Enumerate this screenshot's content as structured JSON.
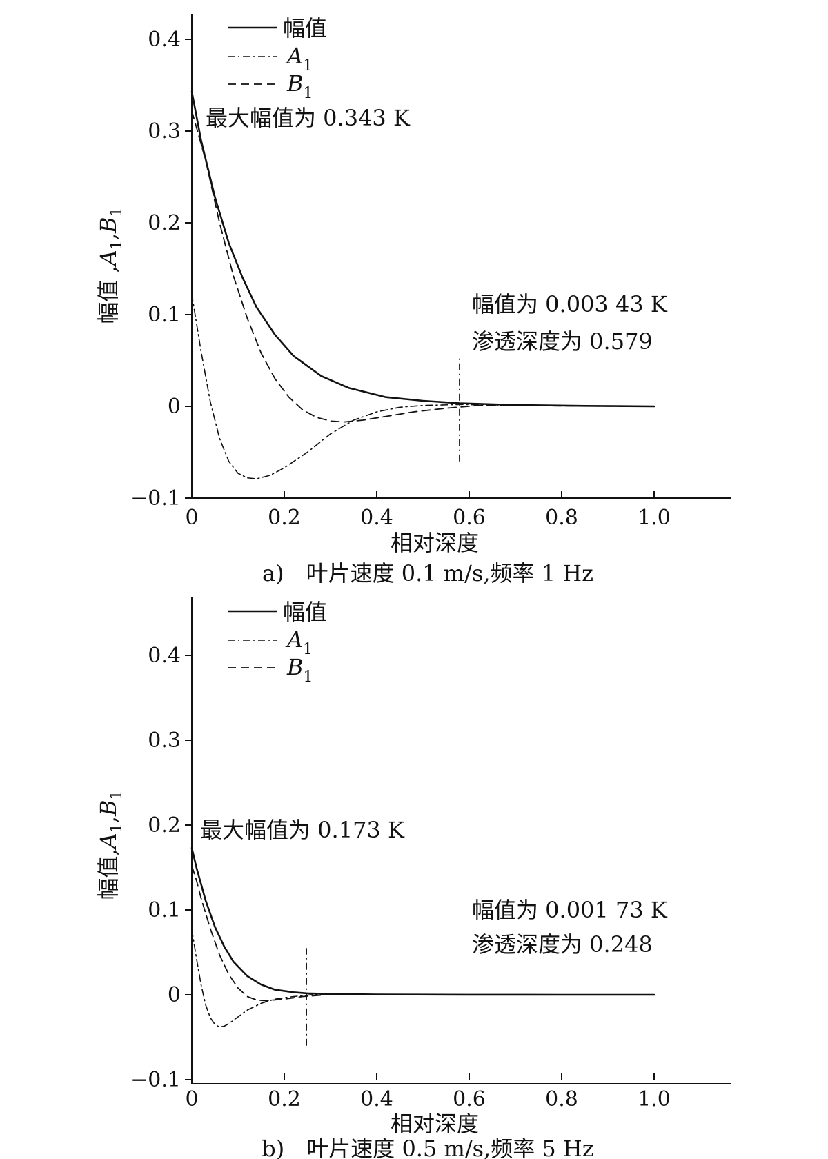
{
  "chart_data": [
    {
      "type": "line",
      "caption": "a)　叶片速度 0.1 m/s,频率 1 Hz",
      "xlabel": "相对深度",
      "ylabel": "幅值 ,A1,B1",
      "xlim": [
        0,
        1.05
      ],
      "ylim": [
        -0.1,
        0.43
      ],
      "xticks": [
        0,
        0.2,
        0.4,
        0.6,
        0.8,
        1.0
      ],
      "xtick_labels": [
        "0",
        "0.2",
        "0.4",
        "0.6",
        "0.8",
        "1.0"
      ],
      "yticks": [
        -0.1,
        0,
        0.1,
        0.2,
        0.3,
        0.4
      ],
      "ytick_labels": [
        "−0.1",
        "0",
        "0.1",
        "0.2",
        "0.3",
        "0.4"
      ],
      "legend_position": "top-left",
      "series": [
        {
          "name": "幅值",
          "style": "solid",
          "x": [
            0,
            0.02,
            0.05,
            0.08,
            0.11,
            0.14,
            0.18,
            0.22,
            0.28,
            0.34,
            0.42,
            0.5,
            0.58,
            0.7,
            0.85,
            1.0
          ],
          "y": [
            0.343,
            0.29,
            0.228,
            0.178,
            0.14,
            0.108,
            0.078,
            0.055,
            0.033,
            0.02,
            0.01,
            0.006,
            0.0034,
            0.0015,
            0.0005,
            0.0
          ]
        },
        {
          "name": "A1",
          "style": "dashdot",
          "x": [
            0,
            0.02,
            0.04,
            0.06,
            0.08,
            0.1,
            0.12,
            0.14,
            0.17,
            0.2,
            0.25,
            0.3,
            0.35,
            0.4,
            0.45,
            0.5,
            0.58,
            0.65,
            0.75,
            0.9,
            1.0
          ],
          "y": [
            0.122,
            0.06,
            0.005,
            -0.035,
            -0.06,
            -0.073,
            -0.078,
            -0.079,
            -0.075,
            -0.067,
            -0.05,
            -0.03,
            -0.015,
            -0.006,
            -0.001,
            0.001,
            0.002,
            0.0015,
            0.0008,
            0.0002,
            0.0
          ]
        },
        {
          "name": "B1",
          "style": "dashed",
          "x": [
            0,
            0.03,
            0.06,
            0.09,
            0.12,
            0.15,
            0.18,
            0.21,
            0.24,
            0.27,
            0.3,
            0.33,
            0.37,
            0.42,
            0.48,
            0.55,
            0.62,
            0.7,
            0.85,
            1.0
          ],
          "y": [
            0.322,
            0.268,
            0.2,
            0.142,
            0.096,
            0.058,
            0.03,
            0.01,
            -0.004,
            -0.012,
            -0.016,
            -0.017,
            -0.015,
            -0.011,
            -0.006,
            -0.002,
            0.001,
            0.001,
            0.0003,
            0.0
          ]
        }
      ],
      "marker_line": {
        "x": 0.579,
        "style": "dashdot",
        "y_range": [
          -0.06,
          0.053
        ]
      },
      "annotations": [
        {
          "text": "最大幅值为 0.343 K"
        },
        {
          "text": "幅值为 0.003 43 K"
        },
        {
          "text": "渗透深度为 0.579"
        }
      ]
    },
    {
      "type": "line",
      "caption": "b)　叶片速度 0.5 m/s,频率 5 Hz",
      "xlabel": "相对深度",
      "ylabel": "幅值,A1,B1",
      "xlim": [
        0,
        1.05
      ],
      "ylim": [
        -0.1,
        0.43
      ],
      "xticks": [
        0,
        0.2,
        0.4,
        0.6,
        0.8,
        1.0
      ],
      "xtick_labels": [
        "0",
        "0.2",
        "0.4",
        "0.6",
        "0.8",
        "1.0"
      ],
      "yticks": [
        -0.1,
        0,
        0.1,
        0.2,
        0.3,
        0.4
      ],
      "ytick_labels": [
        "−0.1",
        "0",
        "0.1",
        "0.2",
        "0.3",
        "0.4"
      ],
      "legend_position": "top-left",
      "series": [
        {
          "name": "幅值",
          "style": "solid",
          "x": [
            0,
            0.01,
            0.03,
            0.05,
            0.07,
            0.09,
            0.12,
            0.15,
            0.18,
            0.22,
            0.25,
            0.3,
            0.4,
            0.6,
            0.8,
            1.0
          ],
          "y": [
            0.173,
            0.15,
            0.111,
            0.08,
            0.057,
            0.039,
            0.022,
            0.012,
            0.006,
            0.003,
            0.0017,
            0.001,
            0.0004,
            0.0001,
            0.0,
            0.0
          ]
        },
        {
          "name": "A1",
          "style": "dashdot",
          "x": [
            0,
            0.01,
            0.02,
            0.03,
            0.04,
            0.05,
            0.06,
            0.07,
            0.08,
            0.1,
            0.12,
            0.15,
            0.18,
            0.22,
            0.26,
            0.3,
            0.4,
            0.6,
            1.0
          ],
          "y": [
            0.077,
            0.043,
            0.012,
            -0.012,
            -0.027,
            -0.035,
            -0.038,
            -0.037,
            -0.034,
            -0.026,
            -0.018,
            -0.01,
            -0.005,
            -0.002,
            0.0,
            0.0005,
            0.0003,
            0.0001,
            0.0
          ]
        },
        {
          "name": "B1",
          "style": "dashed",
          "x": [
            0,
            0.01,
            0.02,
            0.04,
            0.06,
            0.08,
            0.1,
            0.12,
            0.14,
            0.16,
            0.18,
            0.2,
            0.24,
            0.3,
            0.4,
            0.6,
            1.0
          ],
          "y": [
            0.152,
            0.135,
            0.114,
            0.078,
            0.047,
            0.024,
            0.008,
            -0.002,
            -0.006,
            -0.007,
            -0.006,
            -0.005,
            -0.002,
            0.0004,
            0.0002,
            0.0,
            0.0
          ]
        }
      ],
      "marker_line": {
        "x": 0.248,
        "style": "dashdot",
        "y_range": [
          -0.06,
          0.055
        ]
      },
      "annotations": [
        {
          "text": "最大幅值为 0.173 K"
        },
        {
          "text": "幅值为 0.001 73 K"
        },
        {
          "text": "渗透深度为 0.248"
        }
      ]
    }
  ]
}
